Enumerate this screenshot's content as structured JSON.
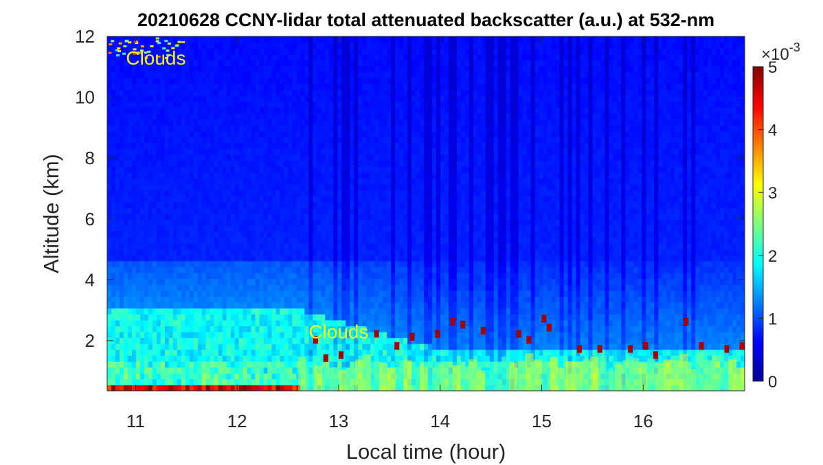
{
  "chart_data": {
    "type": "heatmap",
    "title": "20210628 CCNY-lidar total attenuated backscatter (a.u.) at 532-nm",
    "xlabel": "Local time (hour)",
    "ylabel": "Altitude (km)",
    "xlim": [
      10.72,
      17.0
    ],
    "ylim": [
      0.35,
      12.0
    ],
    "x_ticks": [
      11,
      12,
      13,
      14,
      15,
      16
    ],
    "y_ticks": [
      2,
      4,
      6,
      8,
      10,
      12
    ],
    "colorbar": {
      "colormap": "jet",
      "range": [
        0,
        0.005
      ],
      "ticks": [
        0,
        1,
        2,
        3,
        4,
        5
      ],
      "exponent_label": "×10",
      "exponent": "-3"
    },
    "annotations": [
      {
        "text": "Clouds",
        "x": 11.2,
        "y": 11.3
      },
      {
        "text": "Clouds",
        "x": 13.0,
        "y": 2.3
      }
    ],
    "regions": {
      "near_surface_high_backscatter_top_km": 0.5,
      "boundary_layer_top_km_morning": 3.0,
      "boundary_layer_top_km_afternoon": 1.6,
      "cirrus_cloud_time_hour": [
        10.72,
        11.5
      ],
      "cirrus_cloud_altitude_km": [
        11.3,
        12.0
      ],
      "pbl_cloud_time_hour": [
        12.7,
        17.0
      ],
      "pbl_cloud_altitude_km": [
        1.0,
        2.8
      ]
    }
  }
}
